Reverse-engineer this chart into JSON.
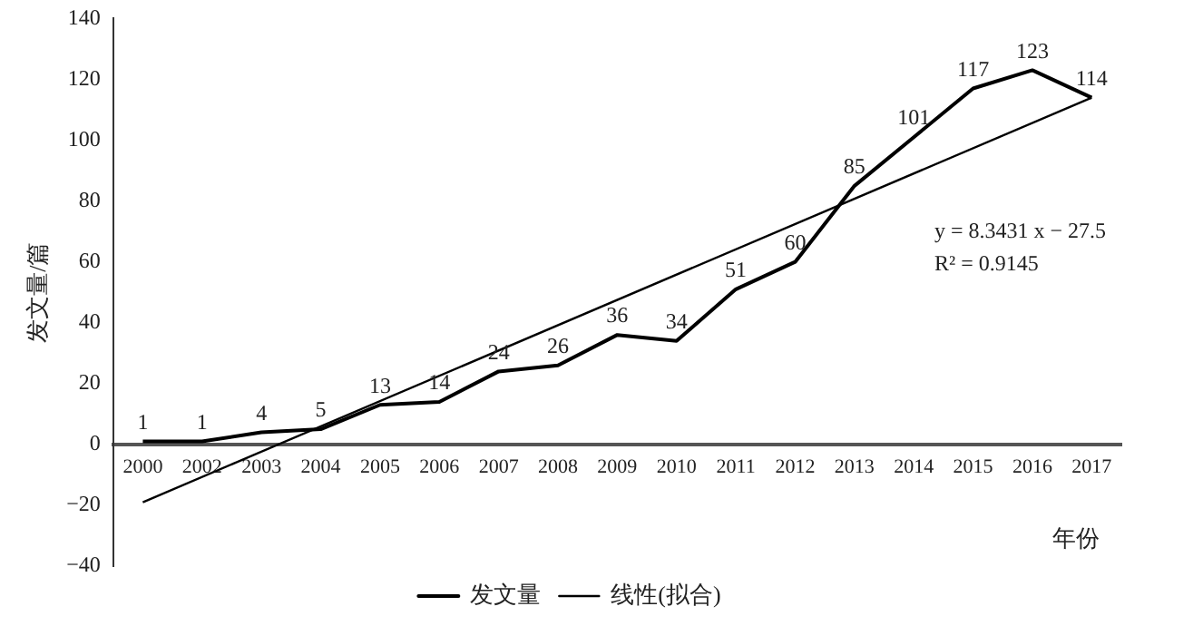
{
  "chart_data": {
    "type": "line",
    "ylabel": "发文量/篇",
    "xlabel": "年份",
    "categories": [
      "2000",
      "2002",
      "2003",
      "2004",
      "2005",
      "2006",
      "2007",
      "2008",
      "2009",
      "2010",
      "2011",
      "2012",
      "2013",
      "2014",
      "2015",
      "2016",
      "2017"
    ],
    "series": [
      {
        "name": "发文量",
        "color": "#000000",
        "data_labels": true,
        "values": [
          1,
          1,
          4,
          5,
          13,
          14,
          24,
          26,
          36,
          34,
          51,
          60,
          85,
          101,
          117,
          123,
          114
        ]
      },
      {
        "name": "线性(拟合)",
        "color": "#000000",
        "values": [
          -19,
          null,
          null,
          null,
          null,
          null,
          null,
          null,
          null,
          null,
          null,
          null,
          null,
          null,
          null,
          null,
          114
        ]
      }
    ],
    "ylim": [
      -40,
      140
    ],
    "yticks": [
      -40,
      -20,
      0,
      20,
      40,
      60,
      80,
      100,
      120,
      140
    ],
    "grid": false,
    "legend": "bottom",
    "marker": "none",
    "annotations": [
      "y = 8.3431 x − 27.5",
      "R² = 0.9145"
    ]
  }
}
